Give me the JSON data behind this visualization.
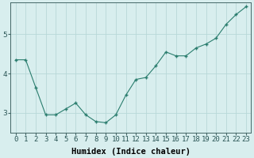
{
  "x": [
    0,
    1,
    2,
    3,
    4,
    5,
    6,
    7,
    8,
    9,
    10,
    11,
    12,
    13,
    14,
    15,
    16,
    17,
    18,
    19,
    20,
    21,
    22,
    23
  ],
  "y": [
    4.35,
    4.35,
    3.65,
    2.95,
    2.95,
    3.1,
    3.25,
    2.95,
    2.78,
    2.75,
    2.95,
    3.45,
    3.85,
    3.9,
    4.2,
    4.55,
    4.45,
    4.45,
    4.65,
    4.75,
    4.9,
    5.25,
    5.5,
    5.7
  ],
  "xlabel": "Humidex (Indice chaleur)",
  "ylim": [
    2.5,
    5.8
  ],
  "yticks": [
    3,
    4,
    5
  ],
  "xtick_labels": [
    "0",
    "1",
    "2",
    "3",
    "4",
    "5",
    "6",
    "7",
    "8",
    "9",
    "10",
    "11",
    "12",
    "13",
    "14",
    "15",
    "16",
    "17",
    "18",
    "19",
    "20",
    "21",
    "22",
    "23"
  ],
  "line_color": "#2a7d6e",
  "marker": "+",
  "marker_size": 3.5,
  "bg_color": "#d8eeee",
  "grid_color": "#b8d8d8",
  "axis_label_fontsize": 7.5,
  "tick_fontsize": 6.5,
  "xlabel_fontsize": 7.5
}
